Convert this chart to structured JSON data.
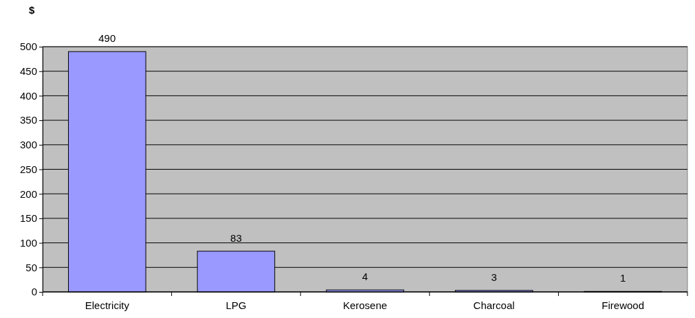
{
  "chart_data": {
    "type": "bar",
    "ylabel": "$",
    "categories": [
      "Electricity",
      "LPG",
      "Kerosene",
      "Charcoal",
      "Firewood"
    ],
    "values": [
      490,
      83,
      4,
      3,
      1
    ],
    "color": "#9999ff",
    "ylim": [
      0,
      500
    ],
    "yticks": [
      0,
      50,
      100,
      150,
      200,
      250,
      300,
      350,
      400,
      450,
      500
    ],
    "grid": "y",
    "data_labels": true
  }
}
